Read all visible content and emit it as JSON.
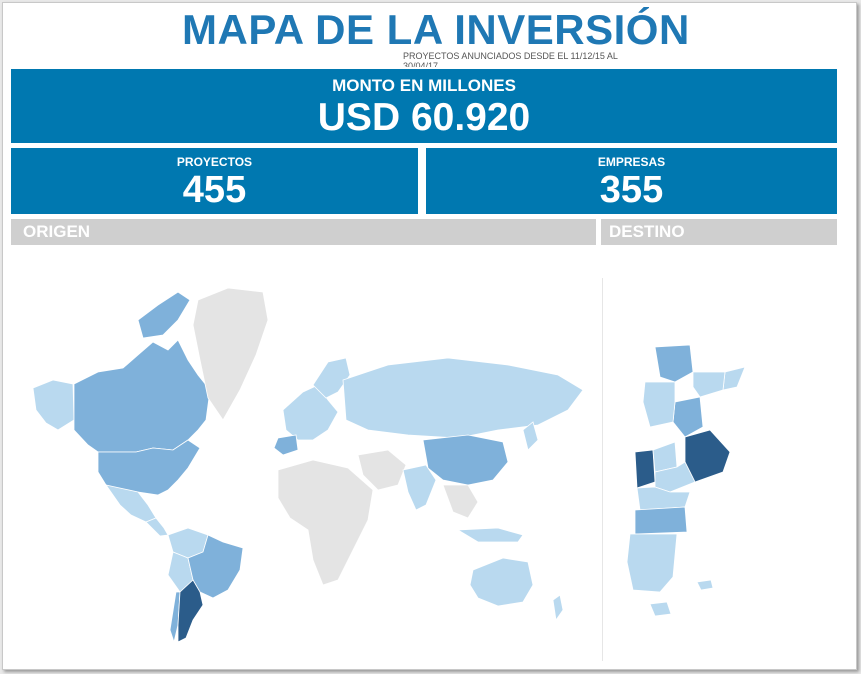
{
  "header": {
    "title": "MAPA DE LA INVERSIÓN",
    "subtitle": "PROYECTOS ANUNCIADOS DESDE EL 11/12/15 AL 30/04/17"
  },
  "kpis": {
    "monto_label": "MONTO EN MILLONES",
    "monto_value": "USD 60.920",
    "proyectos_label": "PROYECTOS",
    "proyectos_value": "455",
    "empresas_label": "EMPRESAS",
    "empresas_value": "355"
  },
  "sections": {
    "origen_label": "ORIGEN",
    "destino_label": "DESTINO"
  },
  "colors": {
    "kpi_blue": "#0078b0",
    "title_blue": "#1f78b4",
    "section_gray": "#cfcfcf",
    "map_none": "#e4e4e4",
    "map_low": "#b9d9ef",
    "map_mid": "#7fb1da",
    "map_high": "#2b5c8a"
  }
}
